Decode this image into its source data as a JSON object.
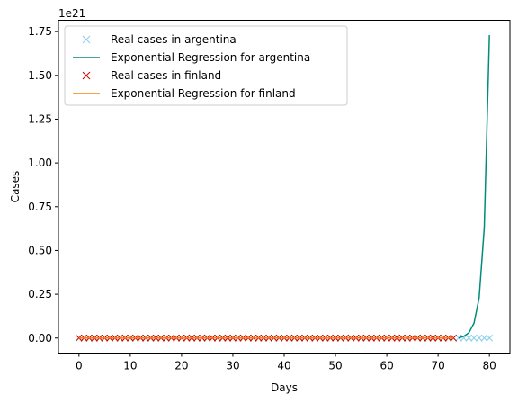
{
  "chart_data": {
    "type": "line",
    "xlabel": "Days",
    "ylabel": "Cases",
    "offset_text": "1e21",
    "xlim": [
      -4,
      84
    ],
    "ylim": [
      -0.086,
      1.815
    ],
    "xticks": [
      0,
      10,
      20,
      30,
      40,
      50,
      60,
      70,
      80
    ],
    "xtick_labels": [
      "0",
      "10",
      "20",
      "30",
      "40",
      "50",
      "60",
      "70",
      "80"
    ],
    "yticks": [
      0,
      0.25,
      0.5,
      0.75,
      1.0,
      1.25,
      1.5,
      1.75
    ],
    "ytick_labels": [
      "0.00",
      "0.25",
      "0.50",
      "0.75",
      "1.00",
      "1.25",
      "1.50",
      "1.75"
    ],
    "grid": false,
    "legend_position": "top-left",
    "series": [
      {
        "name": "Real cases in argentina",
        "kind": "scatter",
        "marker": "x",
        "color": "#87ceeb",
        "x_start": 0,
        "x_end": 80,
        "x_step": 1,
        "y_constant": 0
      },
      {
        "name": "Exponential Regression for argentina",
        "kind": "line",
        "color": "#008b7b",
        "x": [
          74,
          75,
          76,
          77,
          78,
          79,
          80
        ],
        "y": [
          0.0,
          0.01,
          0.03,
          0.085,
          0.23,
          0.63,
          1.73
        ]
      },
      {
        "name": "Real cases in finland",
        "kind": "scatter",
        "marker": "x",
        "color": "#cc0000",
        "x_start": 0,
        "x_end": 73,
        "x_step": 1,
        "y_constant": 0
      },
      {
        "name": "Exponential Regression for finland",
        "kind": "line",
        "color": "#ff7f0e",
        "x": [
          0,
          73
        ],
        "y": [
          0,
          0
        ]
      }
    ]
  }
}
